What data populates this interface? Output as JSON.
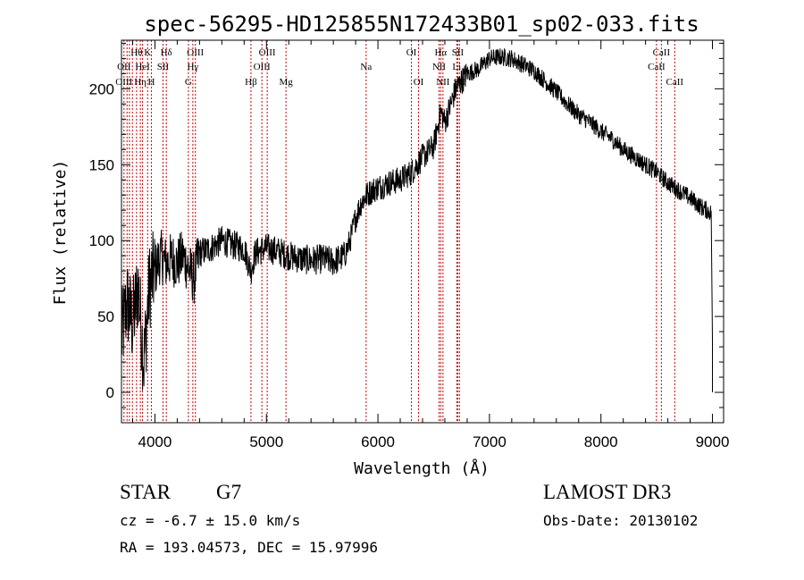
{
  "chart_data": {
    "type": "line",
    "title": "spec-56295-HD125855N172433B01_sp02-033.fits",
    "xlabel": "Wavelength (Å)",
    "ylabel": "Flux (relative)",
    "xlim": [
      3700,
      9100
    ],
    "ylim": [
      -20,
      232
    ],
    "x_ticks": [
      4000,
      5000,
      6000,
      7000,
      8000,
      9000
    ],
    "x_tick_labels": [
      "4000",
      "5000",
      "6000",
      "7000",
      "8000",
      "9000"
    ],
    "y_ticks": [
      0,
      50,
      100,
      150,
      200
    ],
    "y_tick_labels": [
      "0",
      "50",
      "100",
      "150",
      "200"
    ],
    "series": [
      {
        "name": "flux",
        "color": "#000000",
        "x": [
          3700,
          3750,
          3800,
          3850,
          3900,
          3950,
          4000,
          4050,
          4100,
          4150,
          4200,
          4250,
          4300,
          4350,
          4400,
          4500,
          4600,
          4700,
          4800,
          4860,
          4900,
          5000,
          5100,
          5200,
          5300,
          5400,
          5500,
          5600,
          5700,
          5750,
          5800,
          5850,
          5900,
          5950,
          6000,
          6100,
          6200,
          6300,
          6400,
          6500,
          6563,
          6600,
          6700,
          6800,
          6900,
          7000,
          7100,
          7200,
          7300,
          7400,
          7500,
          7600,
          7700,
          7800,
          7900,
          8000,
          8100,
          8200,
          8300,
          8400,
          8500,
          8600,
          8700,
          8800,
          8900,
          8950,
          8990,
          9000
        ],
        "y": [
          35,
          60,
          45,
          70,
          20,
          70,
          80,
          90,
          85,
          88,
          85,
          90,
          82,
          75,
          92,
          95,
          100,
          97,
          95,
          80,
          92,
          95,
          93,
          90,
          88,
          87,
          88,
          86,
          90,
          100,
          115,
          125,
          130,
          133,
          135,
          138,
          140,
          145,
          155,
          162,
          185,
          178,
          200,
          210,
          213,
          220,
          221,
          220,
          216,
          212,
          205,
          198,
          190,
          183,
          178,
          172,
          167,
          160,
          155,
          150,
          145,
          138,
          133,
          128,
          122,
          120,
          118,
          35
        ]
      }
    ],
    "lines": [
      {
        "wavelength": 3722,
        "labels": [
          {
            "text": "OII",
            "row": 2
          },
          {
            "text": "OIII",
            "row": 3
          }
        ]
      },
      {
        "wavelength": 3750,
        "labels": []
      },
      {
        "wavelength": 3771,
        "labels": []
      },
      {
        "wavelength": 3798,
        "labels": []
      },
      {
        "wavelength": 3835,
        "labels": [
          {
            "text": "Hθ",
            "row": 1
          }
        ]
      },
      {
        "wavelength": 3869,
        "labels": [
          {
            "text": "Hη",
            "row": 3
          }
        ]
      },
      {
        "wavelength": 3889,
        "labels": [
          {
            "text": "HeI",
            "row": 2
          }
        ]
      },
      {
        "wavelength": 3934,
        "labels": [
          {
            "text": "K",
            "row": 1
          }
        ]
      },
      {
        "wavelength": 3968,
        "labels": [
          {
            "text": "H",
            "row": 3
          }
        ]
      },
      {
        "wavelength": 4072,
        "labels": [
          {
            "text": "SII",
            "row": 2
          }
        ]
      },
      {
        "wavelength": 4102,
        "labels": [
          {
            "text": "Hδ",
            "row": 1
          }
        ]
      },
      {
        "wavelength": 4300,
        "labels": [
          {
            "text": "G",
            "row": 3
          }
        ]
      },
      {
        "wavelength": 4340,
        "labels": [
          {
            "text": "Hγ",
            "row": 2
          }
        ]
      },
      {
        "wavelength": 4363,
        "labels": [
          {
            "text": "OIII",
            "row": 1
          }
        ]
      },
      {
        "wavelength": 4861,
        "labels": [
          {
            "text": "Hβ",
            "row": 3
          }
        ]
      },
      {
        "wavelength": 4959,
        "labels": [
          {
            "text": "OIII",
            "row": 2
          }
        ]
      },
      {
        "wavelength": 5007,
        "labels": [
          {
            "text": "OIII",
            "row": 1
          }
        ]
      },
      {
        "wavelength": 5175,
        "labels": [
          {
            "text": "Mg",
            "row": 3
          }
        ]
      },
      {
        "wavelength": 5894,
        "labels": [
          {
            "text": "Na",
            "row": 2
          }
        ]
      },
      {
        "wavelength": 6300,
        "labels": [
          {
            "text": "OI",
            "row": 1
          }
        ]
      },
      {
        "wavelength": 6364,
        "labels": [
          {
            "text": "OI",
            "row": 3
          }
        ]
      },
      {
        "wavelength": 6548,
        "labels": [
          {
            "text": "NII",
            "row": 2
          }
        ]
      },
      {
        "wavelength": 6563,
        "labels": [
          {
            "text": "Hα",
            "row": 1
          }
        ]
      },
      {
        "wavelength": 6583,
        "labels": [
          {
            "text": "NII",
            "row": 3
          }
        ]
      },
      {
        "wavelength": 6707,
        "labels": [
          {
            "text": "Li",
            "row": 2
          }
        ]
      },
      {
        "wavelength": 6716,
        "labels": [
          {
            "text": "SII",
            "row": 1
          }
        ]
      },
      {
        "wavelength": 6731,
        "labels": [
          {
            "text": "SII",
            "row": 3
          }
        ]
      },
      {
        "wavelength": 8498,
        "labels": [
          {
            "text": "CaII",
            "row": 2
          }
        ]
      },
      {
        "wavelength": 8542,
        "labels": [
          {
            "text": "CaII",
            "row": 1
          }
        ]
      },
      {
        "wavelength": 8662,
        "labels": [
          {
            "text": "CaII",
            "row": 3
          }
        ]
      }
    ],
    "line_marker_color": "#cc0000",
    "grid": false
  },
  "info": {
    "object_class": "STAR",
    "subclass": "G7",
    "survey": "LAMOST DR3",
    "redshift_text": "cz = -6.7 ± 15.0 km/s",
    "obs_date": "Obs-Date: 20130102",
    "coords": "RA = 193.04573, DEC =  15.97996"
  }
}
